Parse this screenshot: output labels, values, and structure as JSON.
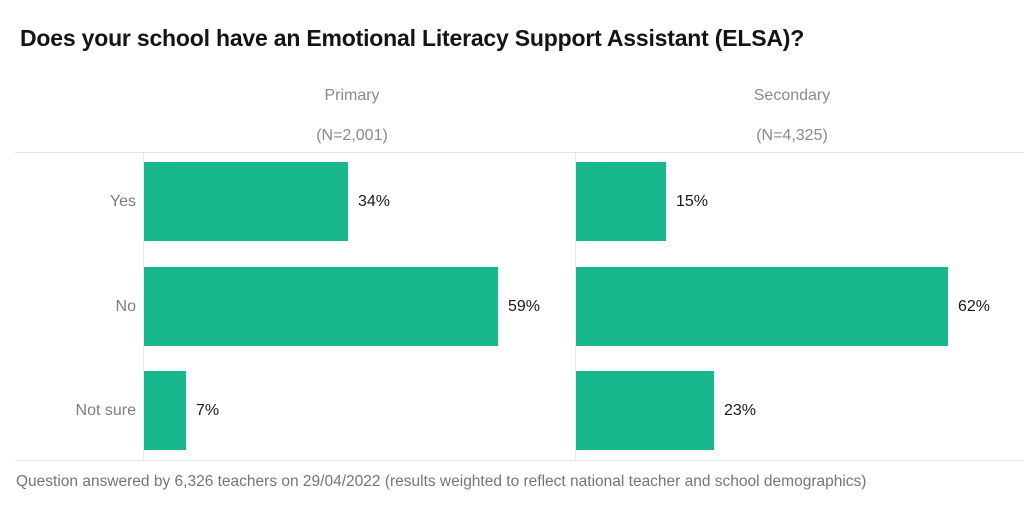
{
  "title": "Does your school have an Emotional Literacy Support Assistant (ELSA)?",
  "footnote": "Question answered by 6,326 teachers on 29/04/2022 (results weighted to reflect national teacher and school demographics)",
  "colors": {
    "bar": "#17b98c",
    "title_text": "#141414",
    "header_gray": "#8a8a8a",
    "category_gray": "#7d7d7d",
    "value_text": "#191919",
    "grid_line": "#e3e3e3",
    "footnote_gray": "#757575"
  },
  "chart_data": {
    "type": "bar",
    "orientation": "horizontal",
    "title": "Does your school have an Emotional Literacy Support Assistant (ELSA)?",
    "categories": [
      "Yes",
      "No",
      "Not sure"
    ],
    "series": [
      {
        "name": "Primary",
        "n_label": "(N=2,001)",
        "values": [
          34,
          59,
          7
        ]
      },
      {
        "name": "Secondary",
        "n_label": "(N=4,325)",
        "values": [
          15,
          62,
          23
        ]
      }
    ],
    "value_suffix": "%",
    "xlim": [
      0,
      70
    ],
    "grid": false,
    "legend": "column-headers",
    "value_labels": "outside-end"
  }
}
